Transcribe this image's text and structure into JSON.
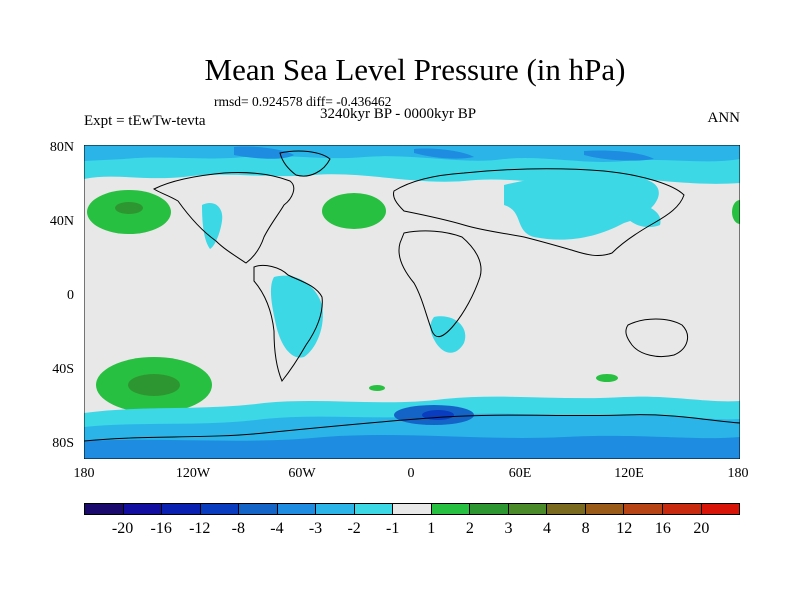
{
  "title": "Mean Sea Level Pressure (in hPa)",
  "stats": "rmsd= 0.924578 diff= -0.436462",
  "period": "3240kyr BP - 0000kyr BP",
  "expt": "Expt = tEwTw-tevta",
  "season": "ANN",
  "y_labels": [
    "80N",
    "40N",
    "0",
    "40S",
    "80S"
  ],
  "x_labels": [
    "180",
    "120W",
    "60W",
    "0",
    "60E",
    "120E",
    "180"
  ],
  "colorbar": {
    "colors": [
      "#1a0a6e",
      "#120ea0",
      "#0a20b0",
      "#0a3cc0",
      "#1464c8",
      "#1e8ce0",
      "#2ab4e8",
      "#3cd8e6",
      "#e8e8e8",
      "#28c040",
      "#2e9630",
      "#4a8a28",
      "#7a6a20",
      "#9a5a18",
      "#b64414",
      "#c82a10",
      "#d81408"
    ],
    "labels": [
      "-20",
      "-16",
      "-12",
      "-8",
      "-4",
      "-3",
      "-2",
      "-1",
      "1",
      "2",
      "3",
      "4",
      "8",
      "12",
      "16",
      "20"
    ]
  },
  "field_colors": {
    "background": "#e8e8e8",
    "cyan": "#3cd8e6",
    "light_blue": "#2ab4e8",
    "blue": "#1e8ce0",
    "mid_blue": "#1464c8",
    "dark_blue": "#0a3cc0",
    "green": "#28c040",
    "dark_green": "#2e9630",
    "coast": "#000000"
  }
}
